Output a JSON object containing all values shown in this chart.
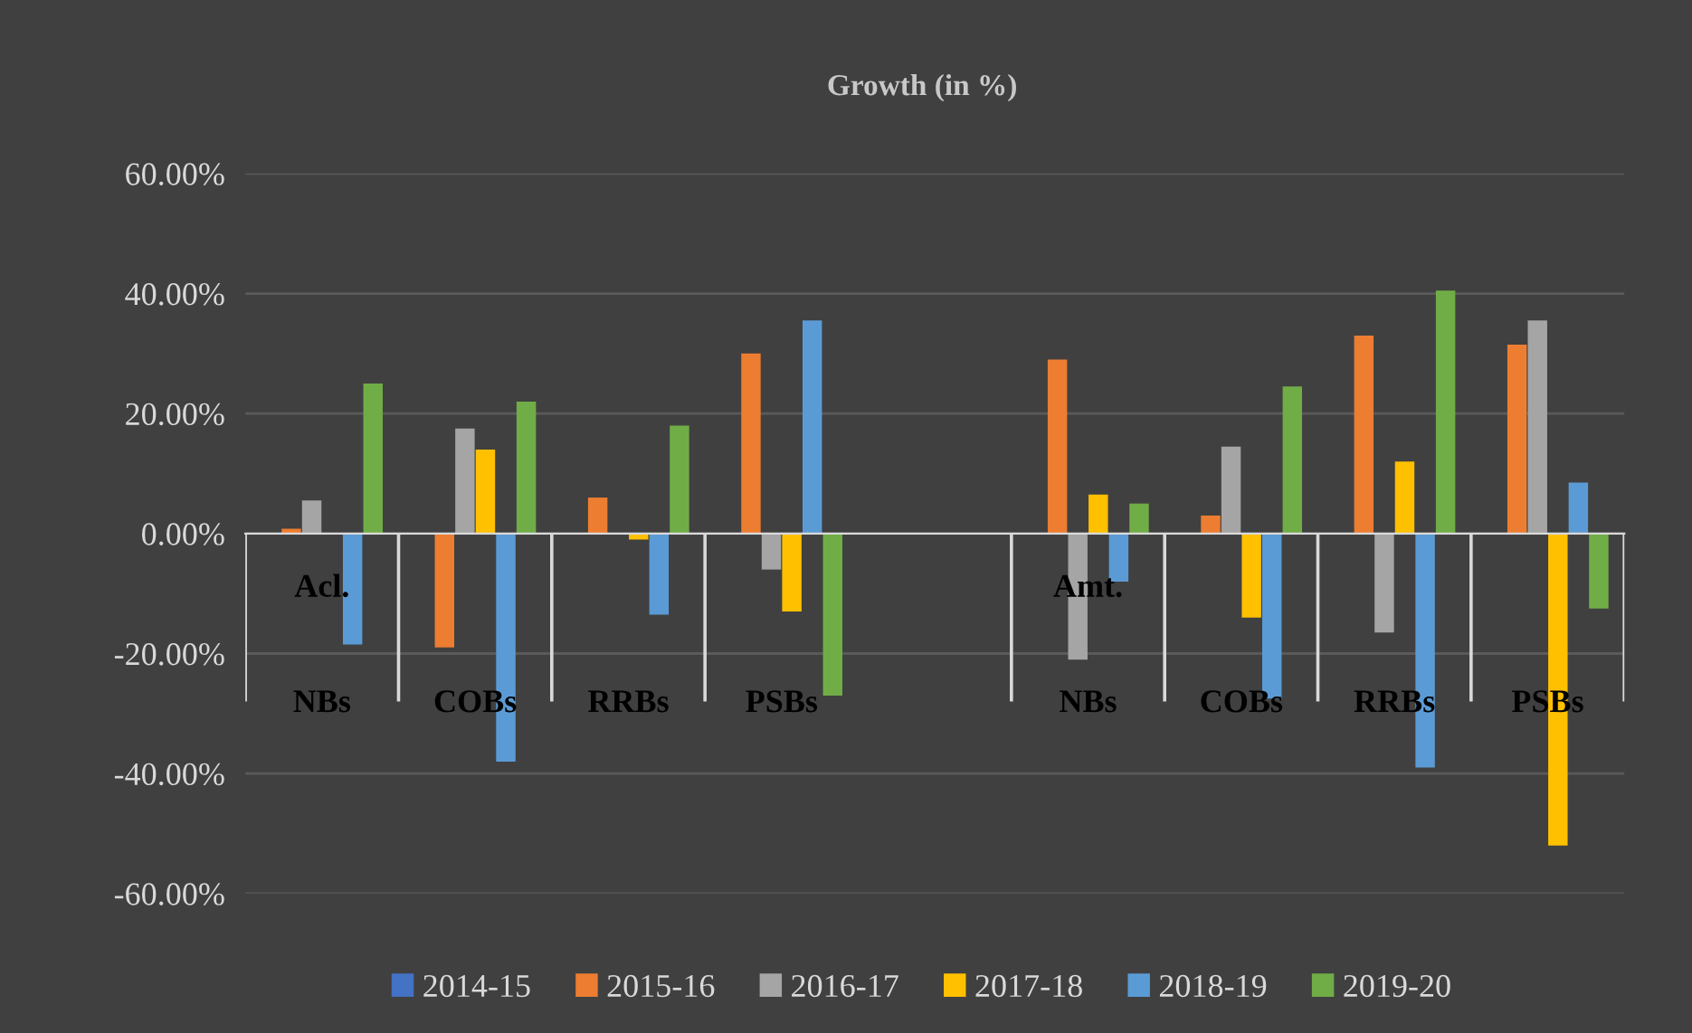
{
  "chart_data": {
    "type": "bar",
    "title": "Growth (in %)",
    "categories": [
      "NBs",
      "COBs",
      "RRBs",
      "PSBs",
      null,
      "NBs",
      "COBs",
      "RRBs",
      "PSBs"
    ],
    "annotations": [
      "Acl.",
      "Amt."
    ],
    "series": [
      {
        "name": "2014-15",
        "color": "#4472c4",
        "values": [
          0,
          0,
          0,
          0,
          null,
          0,
          0,
          0,
          0
        ]
      },
      {
        "name": "2015-16",
        "color": "#ed7d31",
        "values": [
          0.8,
          -19,
          6,
          30,
          null,
          29,
          3,
          33,
          31.5
        ]
      },
      {
        "name": "2016-17",
        "color": "#a5a5a5",
        "values": [
          5.5,
          17.5,
          0,
          -6,
          null,
          -21,
          14.5,
          -16.5,
          35.5
        ]
      },
      {
        "name": "2017-18",
        "color": "#ffc000",
        "values": [
          0,
          14,
          -1,
          -13,
          null,
          6.5,
          -14,
          12,
          -52
        ]
      },
      {
        "name": "2018-19",
        "color": "#5b9bd5",
        "values": [
          -18.5,
          -38,
          -13.5,
          35.5,
          null,
          -8,
          -27.5,
          -39,
          8.5
        ]
      },
      {
        "name": "2019-20",
        "color": "#70ad47",
        "values": [
          25,
          22,
          18,
          -27,
          null,
          5,
          24.5,
          40.5,
          -12.5
        ]
      }
    ],
    "ylim": [
      -60,
      60
    ],
    "yticks": [
      {
        "value": -60,
        "label": "-60.00%"
      },
      {
        "value": -40,
        "label": "-40.00%"
      },
      {
        "value": -20,
        "label": "-20.00%"
      },
      {
        "value": 0,
        "label": "0.00%"
      },
      {
        "value": 20,
        "label": "20.00%"
      },
      {
        "value": 40,
        "label": "40.00%"
      },
      {
        "value": 60,
        "label": "60.00%"
      }
    ],
    "grid": "y",
    "legend": "bottom"
  }
}
